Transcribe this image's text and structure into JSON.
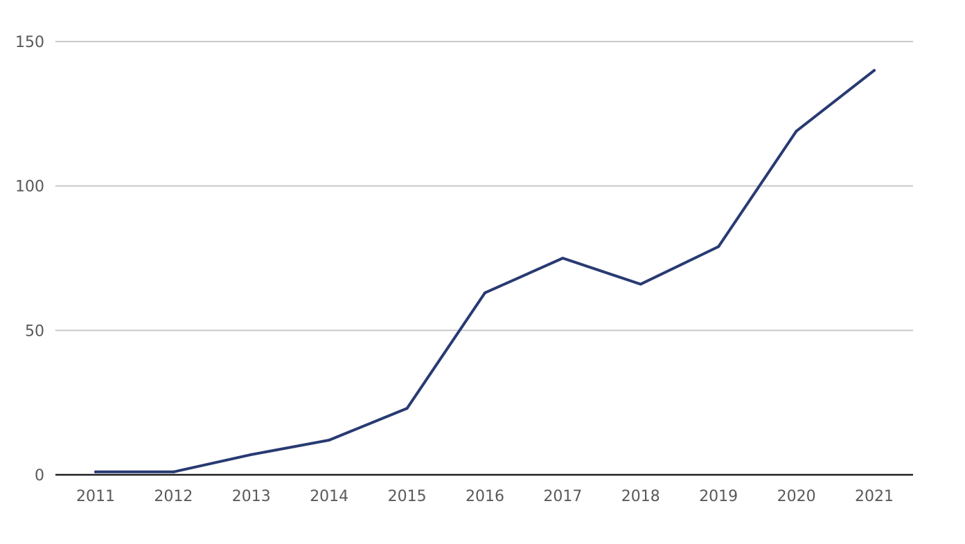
{
  "chart_data": {
    "type": "line",
    "title": "",
    "xlabel": "",
    "ylabel": "",
    "x": [
      "2011",
      "2012",
      "2013",
      "2014",
      "2015",
      "2016",
      "2017",
      "2018",
      "2019",
      "2020",
      "2021"
    ],
    "series": [
      {
        "values": [
          1,
          1,
          7,
          12,
          23,
          63,
          75,
          66,
          79,
          119,
          140
        ],
        "color": "#283a72"
      }
    ],
    "ylim": [
      0,
      150
    ],
    "yticks": [
      "0",
      "50",
      "100",
      "150"
    ],
    "grid": true,
    "legend": "none"
  },
  "colors": {
    "grid": "#c8c8c8",
    "axis": "#1f1f1f",
    "tick_text": "#595959"
  }
}
